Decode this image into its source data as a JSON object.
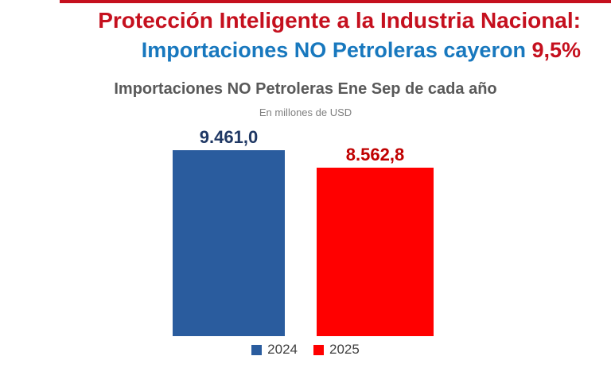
{
  "banner": {
    "line1": "Protección Inteligente a la Industria Nacional:",
    "line2_main": "Importaciones NO Petroleras cayeron ",
    "line2_highlight": "9,5%"
  },
  "chart": {
    "title": "Importaciones NO Petroleras Ene Sep  de cada año",
    "subtitle": "En millones de USD"
  },
  "chart_data": {
    "type": "bar",
    "categories": [
      "2024",
      "2025"
    ],
    "values": [
      9461.0,
      8562.8
    ],
    "value_labels": [
      "9.461,0",
      "8.562,8"
    ],
    "title": "Importaciones NO Petroleras Ene Sep  de cada año",
    "subtitle": "En millones de USD",
    "xlabel": "",
    "ylabel": "En millones de USD",
    "ylim": [
      0,
      9461
    ],
    "grid": false,
    "legend": [
      "2024",
      "2025"
    ],
    "legend_position": "bottom",
    "colors": [
      "#2A5C9E",
      "#FF0000"
    ],
    "label_colors": [
      "#1F3864",
      "#C00000"
    ]
  },
  "colors": {
    "accent_red": "#C5101E",
    "headline_blue": "#1878BE",
    "chart_title_gray": "#595959",
    "subtitle_gray": "#7F7F7F",
    "bar_2024": "#2A5C9E",
    "bar_2025": "#FF0000"
  }
}
